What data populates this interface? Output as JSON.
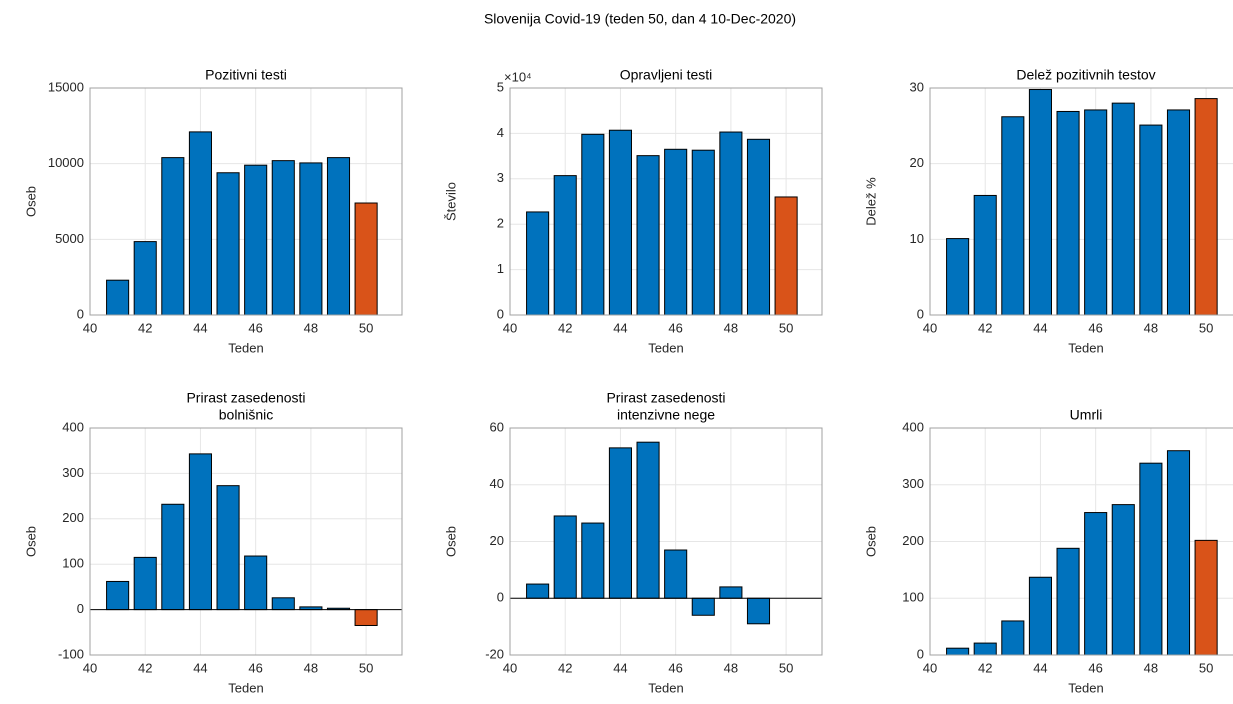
{
  "title": "Slovenija Covid-19 (teden 50, dan 4 10-Dec-2020)",
  "chart_data": [
    {
      "type": "bar",
      "title": "Pozitivni testi",
      "xlabel": "Teden",
      "ylabel": "Oseb",
      "x": [
        41,
        42,
        43,
        44,
        45,
        46,
        47,
        48,
        49,
        50
      ],
      "values": [
        2300,
        4850,
        10400,
        12100,
        9400,
        9900,
        10200,
        10050,
        10400,
        7400
      ],
      "colors": [
        "#0072BD",
        "#0072BD",
        "#0072BD",
        "#0072BD",
        "#0072BD",
        "#0072BD",
        "#0072BD",
        "#0072BD",
        "#0072BD",
        "#D95319"
      ],
      "xlim": [
        40,
        51.3
      ],
      "xticks": [
        40,
        42,
        44,
        46,
        48,
        50
      ],
      "ylim": [
        0,
        15000
      ],
      "yticks": [
        0,
        5000,
        10000,
        15000
      ],
      "grid": true
    },
    {
      "type": "bar",
      "title": "Opravljeni testi",
      "xlabel": "Teden",
      "ylabel": "Število",
      "y_multiplier": "×10⁴",
      "x": [
        41,
        42,
        43,
        44,
        45,
        46,
        47,
        48,
        49,
        50
      ],
      "values": [
        2.27,
        3.07,
        3.98,
        4.07,
        3.51,
        3.65,
        3.63,
        4.03,
        3.87,
        2.6
      ],
      "colors": [
        "#0072BD",
        "#0072BD",
        "#0072BD",
        "#0072BD",
        "#0072BD",
        "#0072BD",
        "#0072BD",
        "#0072BD",
        "#0072BD",
        "#D95319"
      ],
      "xlim": [
        40,
        51.3
      ],
      "xticks": [
        40,
        42,
        44,
        46,
        48,
        50
      ],
      "ylim": [
        0,
        5
      ],
      "yticks": [
        0,
        1,
        2,
        3,
        4,
        5
      ],
      "grid": true
    },
    {
      "type": "bar",
      "title": "Delež pozitivnih testov",
      "xlabel": "Teden",
      "ylabel": "Delež %",
      "x": [
        41,
        42,
        43,
        44,
        45,
        46,
        47,
        48,
        49,
        50
      ],
      "values": [
        10.1,
        15.8,
        26.2,
        29.8,
        26.9,
        27.1,
        28.0,
        25.1,
        27.1,
        28.6
      ],
      "colors": [
        "#0072BD",
        "#0072BD",
        "#0072BD",
        "#0072BD",
        "#0072BD",
        "#0072BD",
        "#0072BD",
        "#0072BD",
        "#0072BD",
        "#D95319"
      ],
      "xlim": [
        40,
        51.3
      ],
      "xticks": [
        40,
        42,
        44,
        46,
        48,
        50
      ],
      "ylim": [
        0,
        30
      ],
      "yticks": [
        0,
        10,
        20,
        30
      ],
      "grid": true
    },
    {
      "type": "bar",
      "title": [
        "Prirast zasedenosti",
        "bolnišnic"
      ],
      "xlabel": "Teden",
      "ylabel": "Oseb",
      "x": [
        41,
        42,
        43,
        44,
        45,
        46,
        47,
        48,
        49,
        50
      ],
      "values": [
        62,
        115,
        232,
        343,
        273,
        118,
        26,
        6,
        3,
        -35
      ],
      "colors": [
        "#0072BD",
        "#0072BD",
        "#0072BD",
        "#0072BD",
        "#0072BD",
        "#0072BD",
        "#0072BD",
        "#0072BD",
        "#0072BD",
        "#D95319"
      ],
      "xlim": [
        40,
        51.3
      ],
      "xticks": [
        40,
        42,
        44,
        46,
        48,
        50
      ],
      "ylim": [
        -100,
        400
      ],
      "yticks": [
        -100,
        0,
        100,
        200,
        300,
        400
      ],
      "grid": true
    },
    {
      "type": "bar",
      "title": [
        "Prirast zasedenosti",
        "intenzivne nege"
      ],
      "xlabel": "Teden",
      "ylabel": "Oseb",
      "x": [
        41,
        42,
        43,
        44,
        45,
        46,
        47,
        48,
        49,
        50
      ],
      "values": [
        5,
        29,
        26.5,
        53,
        55,
        17,
        -6,
        4,
        -9,
        0
      ],
      "colors": [
        "#0072BD",
        "#0072BD",
        "#0072BD",
        "#0072BD",
        "#0072BD",
        "#0072BD",
        "#0072BD",
        "#0072BD",
        "#0072BD",
        "#D95319"
      ],
      "xlim": [
        40,
        51.3
      ],
      "xticks": [
        40,
        42,
        44,
        46,
        48,
        50
      ],
      "ylim": [
        -20,
        60
      ],
      "yticks": [
        -20,
        0,
        20,
        40,
        60
      ],
      "grid": true
    },
    {
      "type": "bar",
      "title": "Umrli",
      "xlabel": "Teden",
      "ylabel": "Oseb",
      "x": [
        41,
        42,
        43,
        44,
        45,
        46,
        47,
        48,
        49,
        50
      ],
      "values": [
        12,
        21,
        60,
        137,
        188,
        251,
        265,
        338,
        360,
        202
      ],
      "colors": [
        "#0072BD",
        "#0072BD",
        "#0072BD",
        "#0072BD",
        "#0072BD",
        "#0072BD",
        "#0072BD",
        "#0072BD",
        "#0072BD",
        "#D95319"
      ],
      "xlim": [
        40,
        51.3
      ],
      "xticks": [
        40,
        42,
        44,
        46,
        48,
        50
      ],
      "ylim": [
        0,
        400
      ],
      "yticks": [
        0,
        100,
        200,
        300,
        400
      ],
      "grid": true
    }
  ]
}
